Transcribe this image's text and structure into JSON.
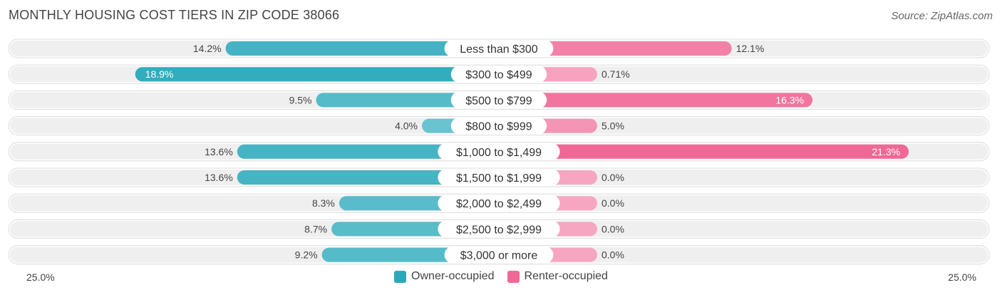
{
  "title": "MONTHLY HOUSING COST TIERS IN ZIP CODE 38066",
  "source": "Source: ZipAtlas.com",
  "colors": {
    "owner": "#2ba9ba",
    "owner_light": "#7ccbd6",
    "renter": "#f06896",
    "renter_light": "#f7a6c1",
    "row_bg": "#efefef"
  },
  "legend": {
    "owner": "Owner-occupied",
    "renter": "Renter-occupied"
  },
  "axis": {
    "left": "25.0%",
    "right": "25.0%"
  },
  "chart_data": {
    "type": "bar",
    "orientation": "diverging-horizontal",
    "xlim": [
      -25,
      25
    ],
    "categories": [
      "Less than $300",
      "$300 to $499",
      "$500 to $799",
      "$800 to $999",
      "$1,000 to $1,499",
      "$1,500 to $1,999",
      "$2,000 to $2,499",
      "$2,500 to $2,999",
      "$3,000 or more"
    ],
    "series": [
      {
        "name": "Owner-occupied",
        "values": [
          14.2,
          18.9,
          9.5,
          4.0,
          13.6,
          13.6,
          8.3,
          8.7,
          9.2
        ],
        "labels": [
          "14.2%",
          "18.9%",
          "9.5%",
          "4.0%",
          "13.6%",
          "13.6%",
          "8.3%",
          "8.7%",
          "9.2%"
        ]
      },
      {
        "name": "Renter-occupied",
        "values": [
          12.1,
          0.71,
          16.3,
          5.0,
          21.3,
          0.0,
          0.0,
          0.0,
          0.0
        ],
        "labels": [
          "12.1%",
          "0.71%",
          "16.3%",
          "5.0%",
          "21.3%",
          "0.0%",
          "0.0%",
          "0.0%",
          "0.0%"
        ]
      }
    ],
    "legend_position": "bottom-center"
  }
}
